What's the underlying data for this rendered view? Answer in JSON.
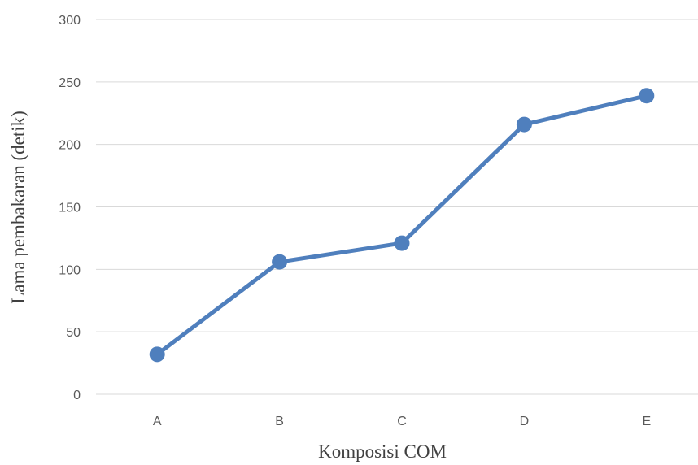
{
  "chart_data": {
    "type": "line",
    "categories": [
      "A",
      "B",
      "C",
      "D",
      "E"
    ],
    "series": [
      {
        "values": [
          32,
          106,
          121,
          216,
          239
        ]
      }
    ],
    "title": "",
    "xlabel": "Komposisi COM",
    "ylabel": "Lama pembakaran (detik)",
    "ylim": [
      0,
      300
    ],
    "yticks": [
      0,
      50,
      100,
      150,
      200,
      250,
      300
    ],
    "grid": true,
    "line_color": "#4f7fbd",
    "marker": "circle"
  }
}
